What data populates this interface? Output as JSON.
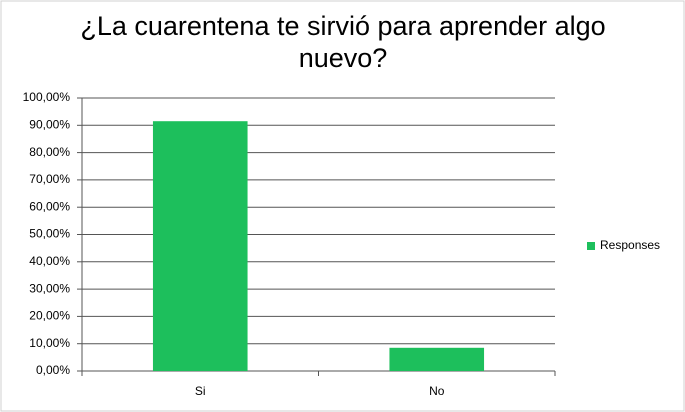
{
  "chart_data": {
    "type": "bar",
    "title": "¿La cuarentena te sirvió para aprender algo nuevo?",
    "categories": [
      "Si",
      "No"
    ],
    "series": [
      {
        "name": "Responses",
        "color": "#1dbf5c",
        "values": [
          91.5,
          8.5
        ]
      }
    ],
    "ylim": [
      0,
      100
    ],
    "yticks": [
      {
        "value": 0,
        "label": "0,00%"
      },
      {
        "value": 10,
        "label": "10,00%"
      },
      {
        "value": 20,
        "label": "20,00%"
      },
      {
        "value": 30,
        "label": "30,00%"
      },
      {
        "value": 40,
        "label": "40,00%"
      },
      {
        "value": 50,
        "label": "50,00%"
      },
      {
        "value": 60,
        "label": "60,00%"
      },
      {
        "value": 70,
        "label": "70,00%"
      },
      {
        "value": 80,
        "label": "80,00%"
      },
      {
        "value": 90,
        "label": "90,00%"
      },
      {
        "value": 100,
        "label": "100,00%"
      }
    ],
    "grid": true,
    "legend": "right"
  }
}
